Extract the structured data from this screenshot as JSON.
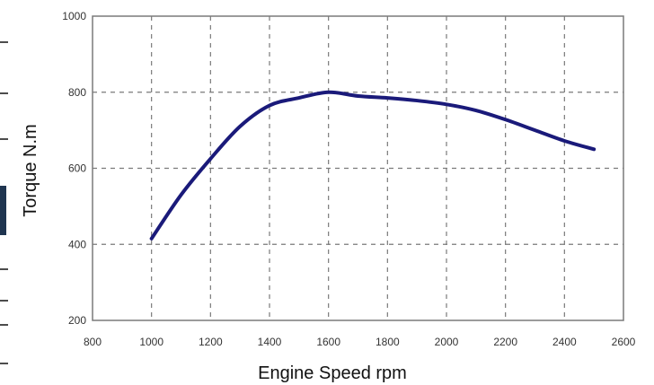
{
  "chart_data": {
    "type": "line",
    "title": "",
    "xlabel": "Engine Speed rpm",
    "ylabel": "Torque N.m",
    "xlim": [
      800,
      2600
    ],
    "ylim": [
      200,
      1000
    ],
    "xticks": [
      800,
      1000,
      1200,
      1400,
      1600,
      1800,
      2000,
      2200,
      2400,
      2600
    ],
    "yticks": [
      200,
      400,
      600,
      800,
      1000
    ],
    "grid": true,
    "legend": "none",
    "colors": {
      "line": "#1a1a7a",
      "grid": "#7a7a7a",
      "frame": "#7a7a7a",
      "edge_block": "#1f3550"
    },
    "series": [
      {
        "x": [
          1000,
          1100,
          1200,
          1300,
          1400,
          1500,
          1600,
          1700,
          1800,
          1900,
          2000,
          2100,
          2200,
          2300,
          2400,
          2500
        ],
        "y": [
          415,
          530,
          625,
          710,
          765,
          785,
          800,
          790,
          785,
          778,
          768,
          752,
          728,
          700,
          672,
          650
        ]
      }
    ]
  }
}
